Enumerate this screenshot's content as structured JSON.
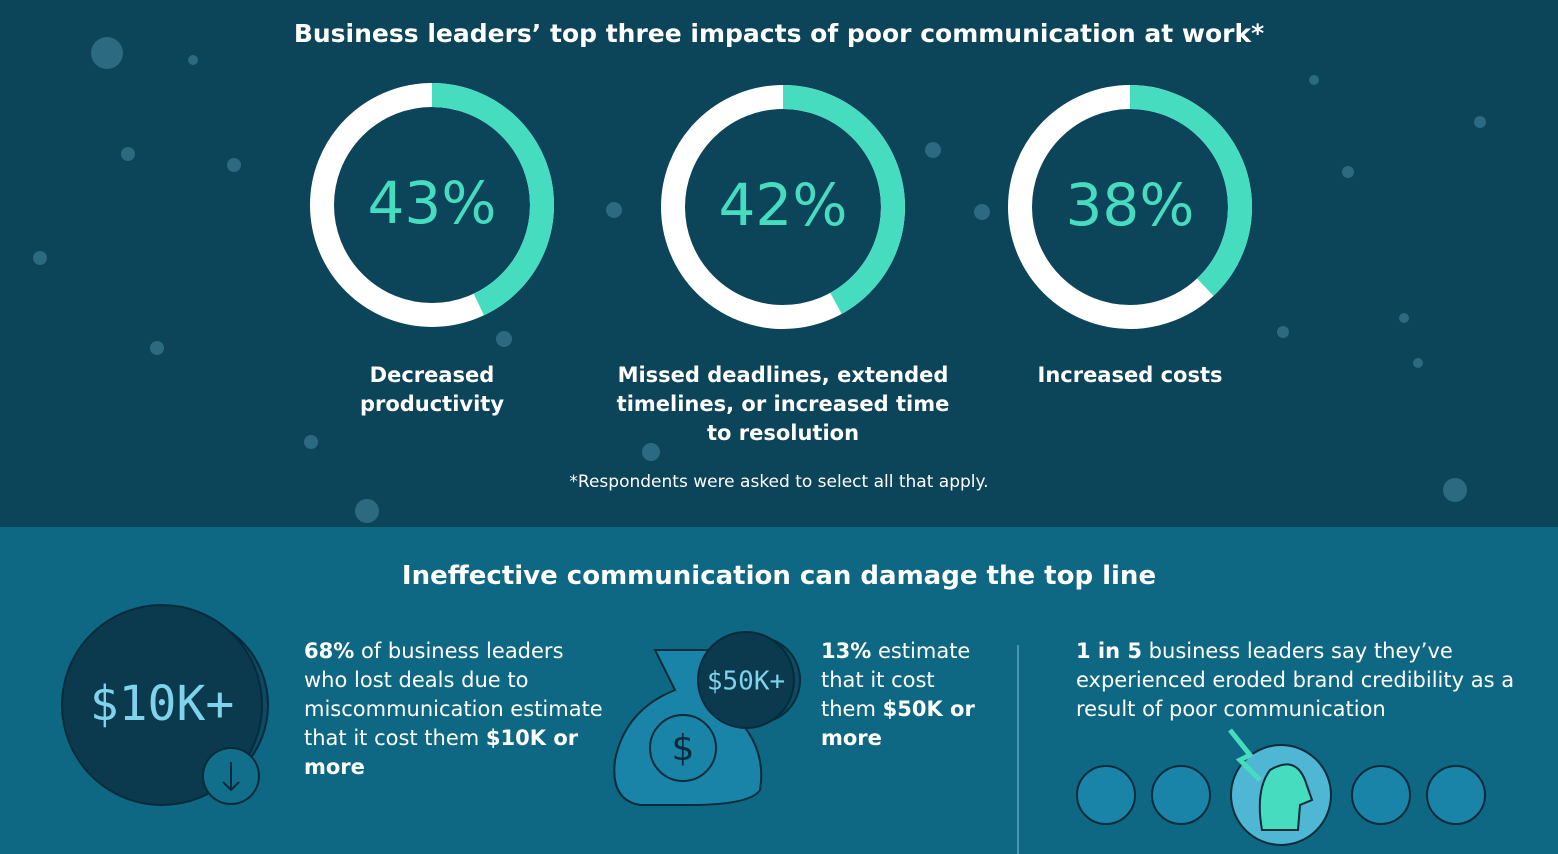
{
  "top": {
    "title": "Business leaders’ top three impacts of poor communication at work*",
    "items": [
      {
        "value": 43,
        "label": "43%",
        "caption": "Decreased productivity"
      },
      {
        "value": 42,
        "label": "42%",
        "caption": "Missed deadlines, extended timelines, or increased time to resolution"
      },
      {
        "value": 38,
        "label": "38%",
        "caption": "Increased costs"
      }
    ],
    "footnote": "*Respondents were asked to select all that apply."
  },
  "bottom": {
    "title": "Ineffective communication can damage the top line",
    "blocks": [
      {
        "badge": "$10K+",
        "runs": [
          {
            "text": "68%",
            "bold": true
          },
          {
            "text": " of business leaders who lost deals due to miscommunication estimate that it cost them ",
            "bold": false
          },
          {
            "text": "$10K or more",
            "bold": true
          }
        ]
      },
      {
        "badge": "$50K+",
        "runs": [
          {
            "text": "13%",
            "bold": true
          },
          {
            "text": " estimate that it cost them ",
            "bold": false
          },
          {
            "text": "$50K or more",
            "bold": true
          }
        ]
      },
      {
        "runs": [
          {
            "text": "1 in 5",
            "bold": true
          },
          {
            "text": " business leaders say they’ve experienced eroded brand credibility as a result of poor communication",
            "bold": false
          }
        ]
      }
    ]
  }
}
